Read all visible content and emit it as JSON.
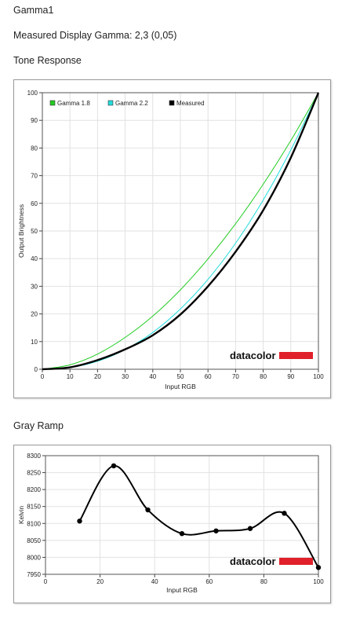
{
  "page": {
    "title": "Gamma1",
    "gamma_line": "Measured Display Gamma: 2,3 (0,05)",
    "tone_heading": "Tone Response",
    "gray_heading": "Gray Ramp"
  },
  "colors": {
    "gamma18": "#22cc22",
    "gamma22": "#22dddd",
    "measured": "#000000",
    "brand_bar": "#e0202a"
  },
  "chart_data": [
    {
      "type": "line",
      "title": "",
      "xlabel": "Input RGB",
      "ylabel": "Output Brightness",
      "xlim": [
        0,
        100
      ],
      "ylim": [
        0,
        100
      ],
      "x_ticks": [
        0,
        10,
        20,
        30,
        40,
        50,
        60,
        70,
        80,
        90,
        100
      ],
      "y_ticks": [
        0,
        10,
        20,
        30,
        40,
        50,
        60,
        70,
        80,
        90,
        100
      ],
      "x_tick_labels": [
        "0",
        "10",
        "20",
        "30",
        "40",
        "50",
        "60",
        "70",
        "80",
        "90",
        "100"
      ],
      "y_tick_labels": [
        "0",
        "10",
        "20",
        "30",
        "40",
        "50",
        "60",
        "70",
        "80",
        "90",
        "100"
      ],
      "x": [
        0,
        10,
        20,
        30,
        40,
        50,
        60,
        70,
        80,
        90,
        100
      ],
      "series": [
        {
          "name": "Gamma 1.8",
          "color": "#22cc22",
          "values": [
            0,
            1.6,
            5.5,
            11.5,
            19.2,
            28.7,
            39.9,
            52.6,
            66.9,
            82.7,
            100
          ]
        },
        {
          "name": "Gamma 2.2",
          "color": "#22dddd",
          "values": [
            0,
            0.6,
            2.9,
            7.1,
            13.3,
            21.8,
            32.5,
            45.6,
            61.2,
            79.3,
            100
          ]
        },
        {
          "name": "Measured",
          "color": "#000000",
          "values": [
            0,
            0.7,
            3.3,
            7.2,
            12.3,
            19.8,
            30.0,
            42.5,
            57.5,
            76.5,
            100
          ]
        }
      ],
      "legend": "top-left",
      "grid": true,
      "watermark": "datacolor"
    },
    {
      "type": "line",
      "title": "",
      "xlabel": "Input RGB",
      "ylabel": "Kelvin",
      "xlim": [
        0,
        100
      ],
      "ylim": [
        7950,
        8300
      ],
      "x_ticks": [
        0,
        20,
        40,
        60,
        80,
        100
      ],
      "y_ticks": [
        7950,
        8000,
        8050,
        8100,
        8150,
        8200,
        8250,
        8300
      ],
      "x_tick_labels": [
        "0",
        "20",
        "40",
        "60",
        "80",
        "100"
      ],
      "y_tick_labels": [
        "7950",
        "8000",
        "8050",
        "8100",
        "8150",
        "8200",
        "8250",
        "8300"
      ],
      "x": [
        12.5,
        25,
        37.5,
        50,
        62.5,
        75,
        87.5,
        100
      ],
      "series": [
        {
          "color": "#000000",
          "values": [
            8107,
            8270,
            8140,
            8070,
            8078,
            8085,
            8130,
            7970
          ]
        }
      ],
      "grid": true,
      "watermark": "datacolor"
    }
  ]
}
